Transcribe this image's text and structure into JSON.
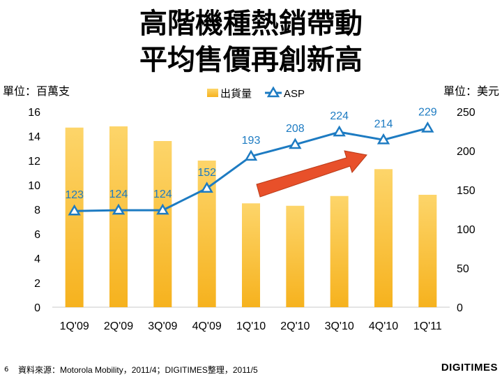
{
  "title_line1": "高階機種熱銷帶動",
  "title_line2": "平均售價再創新高",
  "unit_left": "單位：百萬支",
  "unit_right": "單位：美元",
  "footer": {
    "page_number": "6",
    "source": "資料來源：Motorola Mobility，2011/4；DIGITIMES整理，2011/5",
    "logo": "DIGITIMES"
  },
  "colors": {
    "bar": "#fcc94a",
    "line": "#1d7bc2",
    "arrow": "#e8502a"
  },
  "chart_data": {
    "type": "bar+line",
    "title": "高階機種熱銷帶動平均售價再創新高",
    "categories": [
      "1Q'09",
      "2Q'09",
      "3Q'09",
      "4Q'09",
      "1Q'10",
      "2Q'10",
      "3Q'10",
      "4Q'10",
      "1Q'11"
    ],
    "series": [
      {
        "name": "出貨量",
        "type": "bar",
        "axis": "left",
        "values": [
          14.7,
          14.8,
          13.6,
          12.0,
          8.5,
          8.3,
          9.1,
          11.3,
          9.2
        ]
      },
      {
        "name": "ASP",
        "type": "line",
        "axis": "right",
        "values": [
          123,
          124,
          124,
          152,
          193,
          208,
          224,
          214,
          229
        ]
      }
    ],
    "left_axis": {
      "min": 0,
      "max": 16,
      "ticks": [
        "0",
        "2",
        "4",
        "6",
        "8",
        "10",
        "12",
        "14",
        "16"
      ]
    },
    "right_axis": {
      "min": 0,
      "max": 250,
      "ticks": [
        "0",
        "50",
        "100",
        "150",
        "200",
        "250"
      ]
    },
    "legend": "top-center"
  }
}
